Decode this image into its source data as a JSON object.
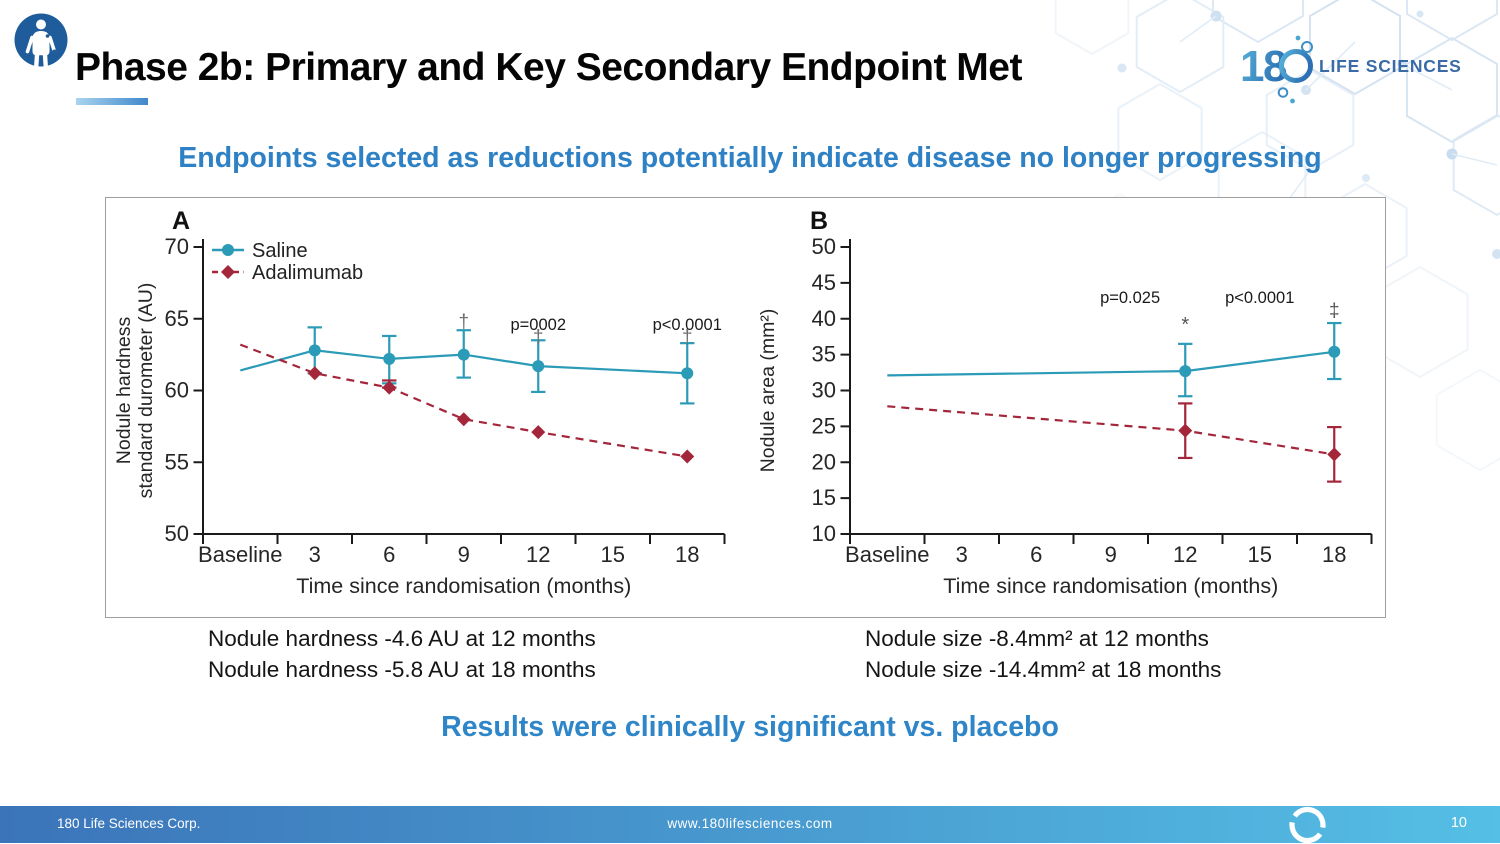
{
  "header": {
    "title": "Phase 2b: Primary and Key Secondary Endpoint Met"
  },
  "logo": {
    "number": "18",
    "text": "LIFE SCIENCES"
  },
  "subtitle": "Endpoints selected as reductions potentially indicate disease no longer progressing",
  "notes": {
    "left": [
      "Nodule hardness -4.6 AU at 12 months",
      "Nodule hardness -5.8 AU at 18 months"
    ],
    "right": [
      "Nodule size -8.4mm² at 12 months",
      "Nodule size -14.4mm² at 18 months"
    ]
  },
  "conclusion": "Results were clinically significant vs. placebo",
  "footer": {
    "company": "180 Life Sciences Corp.",
    "website": "www.180lifesciences.com",
    "page": "10"
  },
  "colors": {
    "saline": "#2B9BB7",
    "adalimumab": "#A3263A",
    "accent": "#2E82C6",
    "footer_left": "#3B74B9",
    "footer_right": "#55BFE5"
  },
  "chart_data": [
    {
      "type": "line",
      "panel": "A",
      "xlabel": "Time since randomisation (months)",
      "ylabel_lines": [
        "Nodule hardness",
        "standard durometer (AU)"
      ],
      "categories": [
        "Baseline",
        "3",
        "6",
        "9",
        "12",
        "15",
        "18"
      ],
      "ylim": [
        50,
        70
      ],
      "yticks": [
        50,
        55,
        60,
        65,
        70
      ],
      "legend": true,
      "series": [
        {
          "name": "Saline",
          "color": "#2B9BB7",
          "line": "solid",
          "marker": "circle",
          "values": [
            61.4,
            62.8,
            62.2,
            62.5,
            61.7,
            null,
            61.2
          ],
          "err_lo": [
            null,
            61.2,
            60.5,
            60.9,
            59.9,
            null,
            59.1
          ],
          "err_hi": [
            null,
            64.4,
            63.8,
            64.2,
            63.5,
            null,
            63.3
          ],
          "markers": [
            false,
            true,
            true,
            true,
            true,
            false,
            true
          ]
        },
        {
          "name": "Adalimumab",
          "color": "#A3263A",
          "line": "dashed",
          "marker": "diamond",
          "values": [
            63.2,
            61.2,
            60.2,
            58.0,
            57.1,
            null,
            55.4
          ],
          "err_lo": [
            null,
            null,
            60.2,
            null,
            null,
            null,
            null
          ],
          "err_hi": [
            null,
            null,
            60.7,
            null,
            null,
            null,
            null
          ],
          "markers": [
            false,
            true,
            true,
            true,
            true,
            false,
            true
          ]
        }
      ],
      "annotations": [
        {
          "text": "†",
          "xi": 3,
          "y": 64.4,
          "size": 19,
          "color": "#6f6f6f"
        },
        {
          "text": "p=0002",
          "xi": 4,
          "y": 64.2,
          "size": 16.5,
          "color": "#1a1a1a"
        },
        {
          "text": "†",
          "xi": 4,
          "y": 63.3,
          "size": 19,
          "color": "#6f6f6f"
        },
        {
          "text": "p<0.0001",
          "xi": 6,
          "y": 64.2,
          "size": 16.5,
          "color": "#1a1a1a"
        },
        {
          "text": "†",
          "xi": 6,
          "y": 63.3,
          "size": 19,
          "color": "#6f6f6f"
        }
      ]
    },
    {
      "type": "line",
      "panel": "B",
      "xlabel": "Time since randomisation (months)",
      "ylabel_lines": [
        "Nodule area (mm²)"
      ],
      "categories": [
        "Baseline",
        "3",
        "6",
        "9",
        "12",
        "15",
        "18"
      ],
      "ylim": [
        10,
        50
      ],
      "yticks": [
        10,
        15,
        20,
        25,
        30,
        35,
        40,
        45,
        50
      ],
      "legend": false,
      "series": [
        {
          "name": "Saline",
          "color": "#2B9BB7",
          "line": "solid",
          "marker": "circle",
          "values": [
            32.1,
            null,
            null,
            null,
            32.7,
            null,
            35.4
          ],
          "err_lo": [
            null,
            null,
            null,
            null,
            29.2,
            null,
            31.6
          ],
          "err_hi": [
            null,
            null,
            null,
            null,
            36.5,
            null,
            39.4
          ],
          "markers": [
            false,
            false,
            false,
            false,
            true,
            false,
            true
          ]
        },
        {
          "name": "Adalimumab",
          "color": "#A3263A",
          "line": "dashed",
          "marker": "diamond",
          "values": [
            27.8,
            null,
            null,
            null,
            24.4,
            null,
            21.1
          ],
          "err_lo": [
            null,
            null,
            null,
            null,
            20.6,
            null,
            17.3
          ],
          "err_hi": [
            null,
            null,
            null,
            null,
            28.2,
            null,
            24.9
          ],
          "markers": [
            false,
            false,
            false,
            false,
            true,
            false,
            true
          ]
        }
      ],
      "annotations": [
        {
          "text": "p=0.025",
          "xi": 3.26,
          "y": 42.2,
          "size": 16.5,
          "color": "#1a1a1a"
        },
        {
          "text": "p<0.0001",
          "xi": 5.0,
          "y": 42.2,
          "size": 16.5,
          "color": "#1a1a1a"
        },
        {
          "text": "*",
          "xi": 4,
          "y": 38.3,
          "size": 20,
          "color": "#555555"
        },
        {
          "text": "‡",
          "xi": 6,
          "y": 40.3,
          "size": 19,
          "color": "#555555"
        }
      ]
    }
  ]
}
